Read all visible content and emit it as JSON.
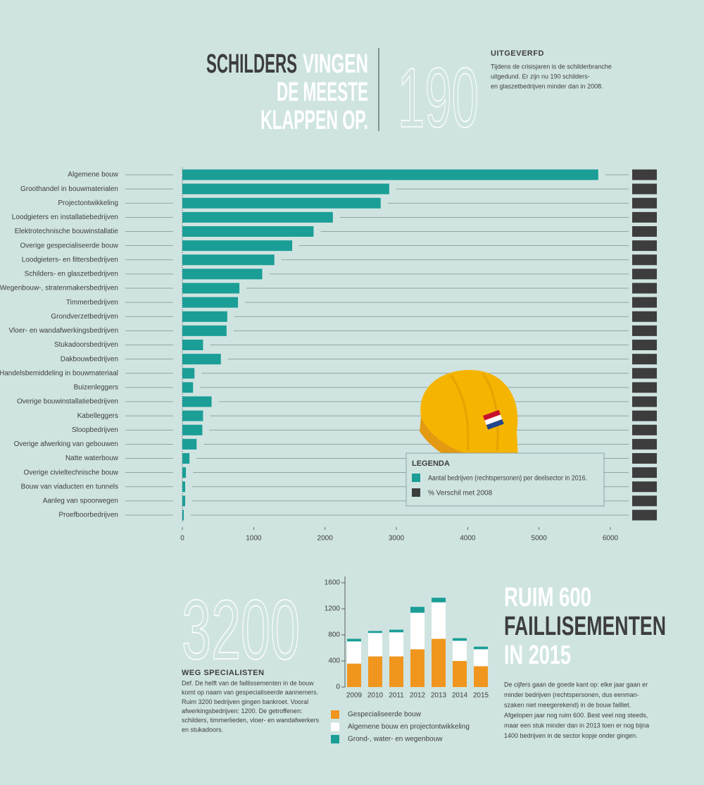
{
  "header": {
    "title": [
      "SCHILDERS",
      "VINGEN",
      "DE MEESTE",
      "KLAPPEN OP."
    ],
    "number": "190",
    "subtitle": "UITGEVERFD",
    "text": [
      "Tijdens de crisisjaren is de schilderbranche",
      "uitgedund. Er zijn nu 190 schilders-",
      "en glaszetbedrijven minder dan in 2008."
    ]
  },
  "specialists": {
    "number": "3200",
    "title": "WEG SPECIALISTEN",
    "text": [
      "Def. De helft van de faillissementen in de bouw",
      "komt op naam van gespecialiseerde aannemers.",
      "Ruim 3200 bedrijven gingen bankroet. Vooral",
      "afwerkingsbedrijven: 1200. De getroffenen:",
      "schilders, timmerlieden, vloer- en wandafwerkers",
      "en stukadoors."
    ]
  },
  "bankruptcies": {
    "title": [
      "RUIM 600",
      "FAILLISEMENTEN",
      "IN 2015"
    ],
    "text": [
      "De cijfers gaan de goede kant op: elke jaar gaan er",
      "minder bedrijven (rechtspersonen, dus eenman-",
      "szaken niet meegerekend) in de bouw failliet.",
      "Afgelopen jaar nog ruim 600. Best veel nog steeds,",
      "maar een stuk minder dan in 2013 toen er nog bijna",
      "1400 bedrijven in de sector kopje onder gingen."
    ]
  },
  "chart_data": [
    {
      "type": "bar",
      "orientation": "horizontal",
      "legend_title": "LEGENDA",
      "categories": [
        "Algemene bouw",
        "Groothandel in bouwmaterialen",
        "Projectontwikkeling",
        "Loodgieters en installatiebedrijven",
        "Elektrotechnische bouwinstallatie",
        "Overige gespecialiseerde bouw",
        "Loodgieters- en fittersbedrijven",
        "Schilders- en glaszetbedrijven",
        "Wegenbouw-, stratenmakersbedrijven",
        "Timmerbedrijven",
        "Grondverzetbedrijven",
        "Vloer- en wandafwerkingsbedrijven",
        "Stukadoorsbedrijven",
        "Dakbouwbedrijven",
        "Handelsbemiddeling in bouwmateriaal",
        "Buizenleggers",
        "Overige bouwinstallatiebedrijven",
        "Kabelleggers",
        "Sloopbedrijven",
        "Overige afwerking van gebouwen",
        "Natte waterbouw",
        "Overige civieltechnische bouw",
        "Bouw van viaducten en tunnels",
        "Aanleg van spoorwegen",
        "Proefboorbedrijven"
      ],
      "series": [
        {
          "name": "Aantal bedrijven (rechtspersonen) per deelsector in 2016.",
          "color": "#1a9e96",
          "values": [
            5830,
            2900,
            2780,
            2110,
            1840,
            1540,
            1290,
            1120,
            800,
            780,
            630,
            620,
            290,
            540,
            170,
            150,
            410,
            290,
            280,
            200,
            100,
            50,
            40,
            40,
            20
          ]
        },
        {
          "name": "% Verschil met 2008",
          "color": "#3d3d3d",
          "label_color_positive": "#ffffff",
          "label_color_negative": "#f0961e",
          "values": [
            6,
            -3,
            -1,
            -2,
            5,
            -2,
            -4,
            -15,
            -6,
            -14,
            28,
            -5,
            -21,
            2,
            -3,
            50,
            40,
            20,
            0,
            -18,
            13,
            250,
            -33,
            300,
            100
          ],
          "value_labels": [
            "+6%",
            "-3%",
            "-1%",
            "-2%",
            "+5%",
            "-2%",
            "-4%",
            "-15%",
            "-6%",
            "-14%",
            "+28%",
            "-5%",
            "-21%",
            "+2%",
            "-3%",
            "+50%",
            "+40%",
            "+20%",
            "0%",
            "-18%",
            "+13%",
            "+250%",
            "-33%",
            "+300%",
            "+100%"
          ]
        }
      ],
      "xlim": [
        0,
        6000
      ],
      "xticks": [
        0,
        1000,
        2000,
        3000,
        4000,
        5000,
        6000
      ]
    },
    {
      "type": "stacked_bar",
      "categories": [
        "2009",
        "2010",
        "2011",
        "2012",
        "2013",
        "2014",
        "2015"
      ],
      "series": [
        {
          "name": "Gespecialiseerde bouw",
          "color": "#f0961e",
          "values": [
            360,
            470,
            470,
            580,
            740,
            400,
            320
          ]
        },
        {
          "name": "Algemene bouw en projectontwikkeling",
          "color": "#ffffff",
          "values": [
            340,
            360,
            370,
            560,
            560,
            310,
            260
          ]
        },
        {
          "name": "Grond-, water- en wegenbouw",
          "color": "#1a9e96",
          "values": [
            40,
            30,
            40,
            90,
            70,
            40,
            40
          ]
        }
      ],
      "ylim": [
        0,
        1600
      ],
      "yticks": [
        0,
        400,
        800,
        1200,
        1600
      ]
    }
  ]
}
